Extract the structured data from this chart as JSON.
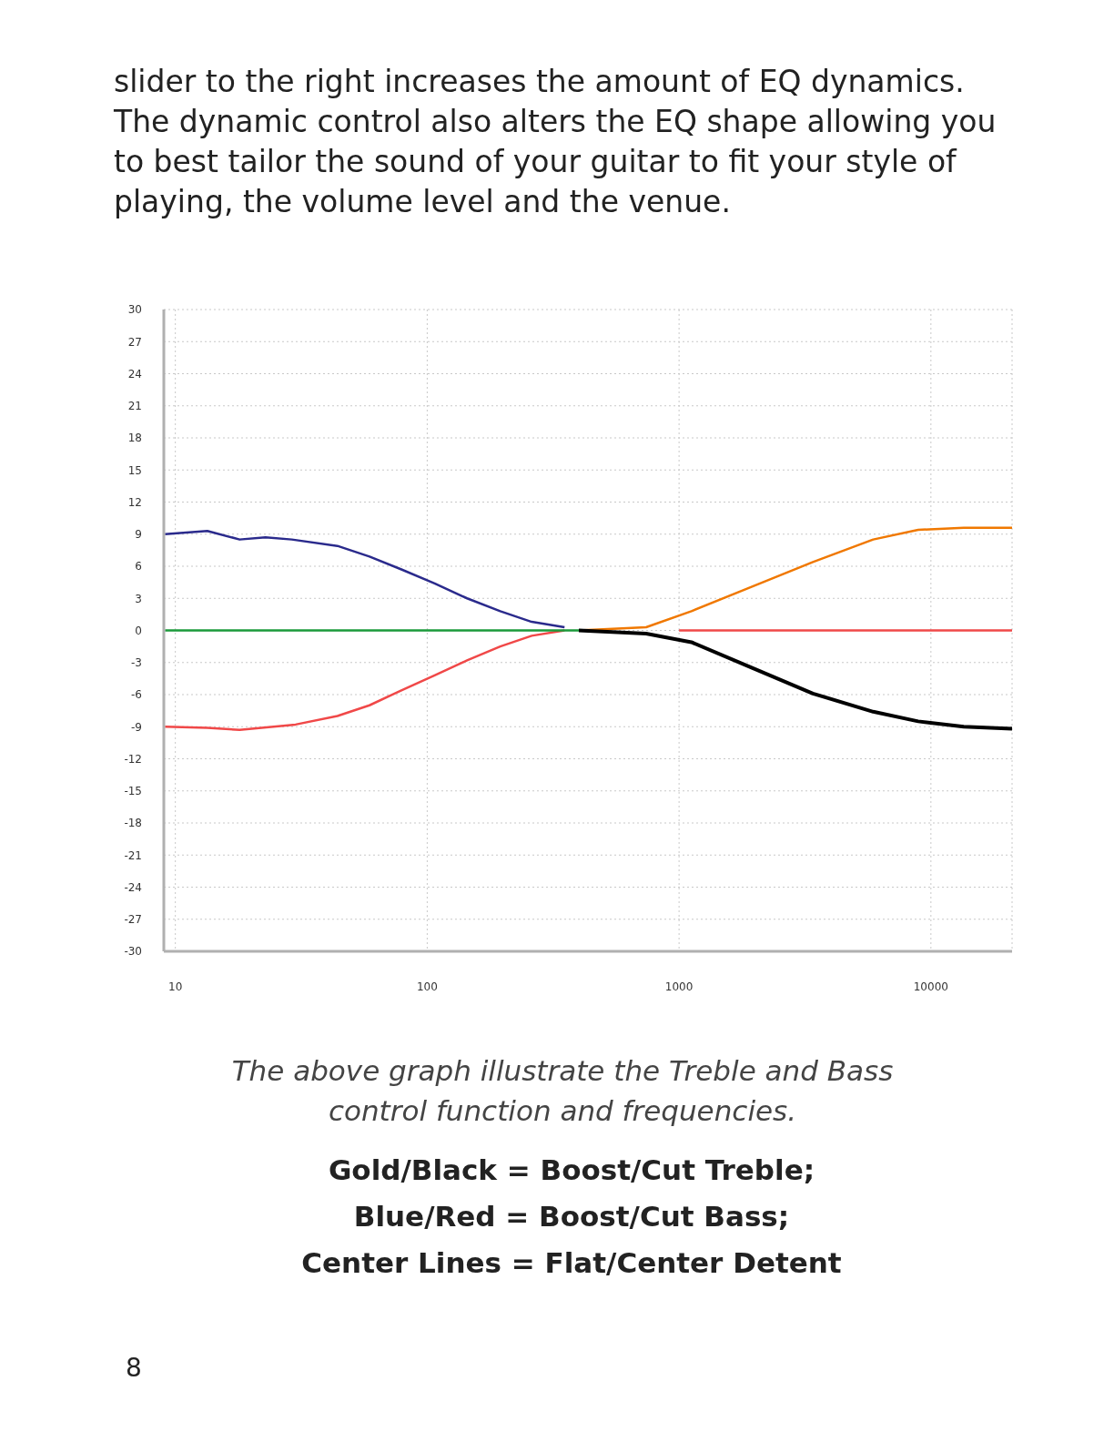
{
  "chart_data": {
    "type": "line",
    "log": "x",
    "grid": true,
    "xlim": [
      9,
      21000
    ],
    "xticks": [
      10,
      100,
      1000,
      10000
    ],
    "ylim": [
      -30,
      30
    ],
    "yticks": [
      -30,
      -27,
      -24,
      -21,
      -18,
      -15,
      -12,
      -9,
      -6,
      -3,
      0,
      3,
      6,
      9,
      12,
      15,
      18,
      21,
      24,
      27,
      30
    ],
    "series": [
      {
        "color": "#2a2a8c",
        "x": [
          9.1,
          13.4,
          18,
          22.8,
          29,
          44,
          59,
          79,
          107,
          144,
          195,
          260,
          351
        ],
        "values": [
          9.0,
          9.3,
          8.5,
          8.7,
          8.5,
          7.9,
          6.9,
          5.7,
          4.4,
          3.0,
          1.8,
          0.8,
          0.3
        ]
      },
      {
        "color": "#f04848",
        "x": [
          9.1,
          13.4,
          18,
          30,
          44,
          59,
          79,
          107,
          144,
          195,
          260,
          351,
          500,
          1000,
          3000,
          10000,
          21000
        ],
        "values": [
          -9.0,
          -9.1,
          -9.3,
          -8.8,
          -8.0,
          -7.0,
          -5.6,
          -4.2,
          -2.8,
          -1.5,
          -0.5,
          0,
          null,
          0,
          0,
          0,
          0
        ]
      },
      {
        "color": "#f07800",
        "x": [
          400,
          740,
          1120,
          1950,
          3400,
          5900,
          8900,
          13500,
          21000
        ],
        "values": [
          0,
          0.3,
          1.8,
          4.1,
          6.4,
          8.5,
          9.4,
          9.6,
          9.6
        ]
      },
      {
        "color": "#000000",
        "x": [
          400,
          740,
          1120,
          1950,
          3400,
          5900,
          8900,
          13500,
          21000
        ],
        "values": [
          0,
          -0.3,
          -1.1,
          -3.5,
          -5.9,
          -7.6,
          -8.5,
          -9.0,
          -9.2
        ]
      },
      {
        "color": "#1a9a3a",
        "x": [
          9.1,
          100,
          400
        ],
        "values": [
          0,
          0,
          0
        ]
      }
    ],
    "annotations": [
      "slider to the right increases the amount of EQ dynamics. The dynamic control also alters the EQ shape allowing you to best tailor the sound of your guitar to fit your style of playing, the volume level and the venue.",
      "The above graph illustrate the Treble and Bass control function and frequencies.",
      "Gold/Black = Boost/Cut Treble;",
      "Blue/Red = Boost/Cut Bass;",
      "Center Lines = Flat/Center Detent",
      "8"
    ]
  }
}
